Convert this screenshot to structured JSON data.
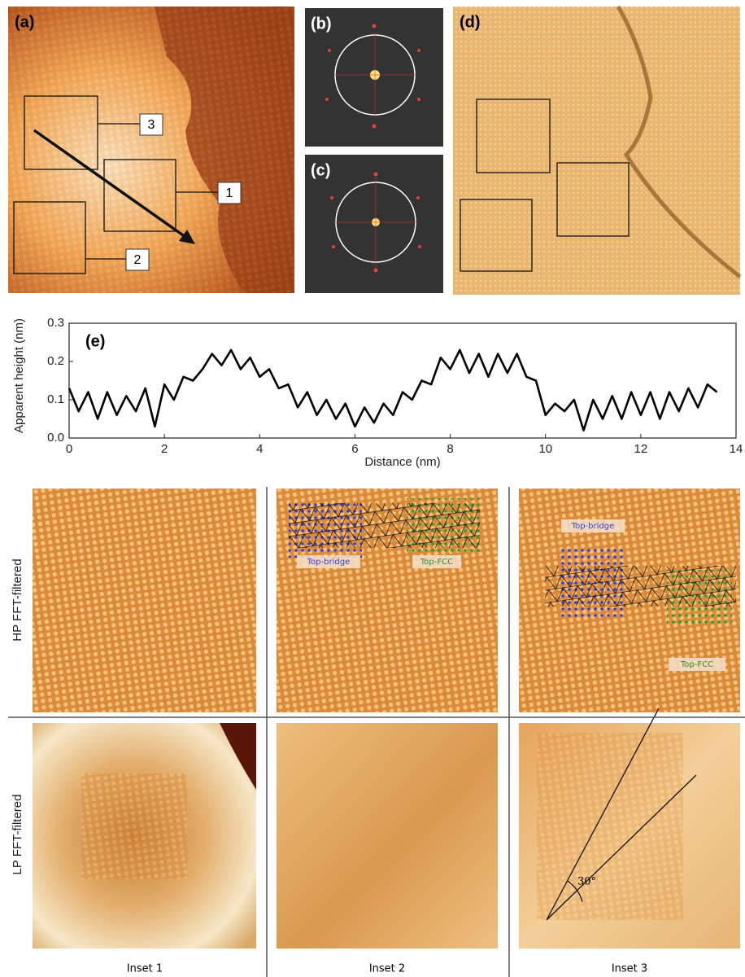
{
  "panel_labels": [
    "(a)",
    "(b)",
    "(c)",
    "(d)"
  ],
  "box_labels": [
    "3",
    "1",
    "2"
  ],
  "chart_data": {
    "type": "line",
    "label": "(e)",
    "xlabel": "Distance (nm)",
    "ylabel": "Apparent height (nm)",
    "x": [
      0,
      0.2,
      0.4,
      0.6,
      0.8,
      1.0,
      1.2,
      1.4,
      1.6,
      1.8,
      2.0,
      2.2,
      2.4,
      2.6,
      2.8,
      3.0,
      3.2,
      3.4,
      3.6,
      3.8,
      4.0,
      4.2,
      4.4,
      4.6,
      4.8,
      5.0,
      5.2,
      5.4,
      5.6,
      5.8,
      6.0,
      6.2,
      6.4,
      6.6,
      6.8,
      7.0,
      7.2,
      7.4,
      7.6,
      7.8,
      8.0,
      8.2,
      8.4,
      8.6,
      8.8,
      9.0,
      9.2,
      9.4,
      9.6,
      9.8,
      10.0,
      10.2,
      10.4,
      10.6,
      10.8,
      11.0,
      11.2,
      11.4,
      11.6,
      11.8,
      12.0,
      12.2,
      12.4,
      12.6,
      12.8,
      13.0,
      13.2,
      13.4,
      13.6
    ],
    "series": [
      {
        "color": "#000000",
        "values": [
          0.13,
          0.07,
          0.12,
          0.05,
          0.12,
          0.06,
          0.11,
          0.07,
          0.13,
          0.03,
          0.14,
          0.1,
          0.16,
          0.15,
          0.18,
          0.22,
          0.19,
          0.23,
          0.18,
          0.21,
          0.16,
          0.18,
          0.13,
          0.14,
          0.08,
          0.12,
          0.06,
          0.1,
          0.05,
          0.09,
          0.03,
          0.08,
          0.04,
          0.09,
          0.06,
          0.12,
          0.1,
          0.15,
          0.14,
          0.21,
          0.18,
          0.23,
          0.17,
          0.22,
          0.16,
          0.22,
          0.17,
          0.22,
          0.16,
          0.15,
          0.06,
          0.09,
          0.07,
          0.1,
          0.02,
          0.1,
          0.05,
          0.11,
          0.05,
          0.12,
          0.06,
          0.12,
          0.05,
          0.12,
          0.07,
          0.13,
          0.08,
          0.14,
          0.12
        ]
      }
    ],
    "xlim": [
      0,
      14
    ],
    "ylim": [
      0,
      0.3
    ],
    "xticks": [
      0,
      2,
      4,
      6,
      8,
      10,
      12,
      14
    ],
    "yticks": [
      {
        "value": 0,
        "label": "0.0"
      },
      0.1,
      0.2,
      0.3
    ]
  },
  "insets": {
    "row_labels": [
      "HP FFT-filtered",
      "LP FFT-filtered"
    ],
    "column_labels": [
      "Inset 1",
      "Inset 2",
      "Inset 3"
    ],
    "inset2_annotations": [
      "Top-bridge",
      "Top-FCC"
    ],
    "inset3_annotations": [
      "Top-bridge",
      "Top-FCC"
    ],
    "angle_label": "30°"
  }
}
